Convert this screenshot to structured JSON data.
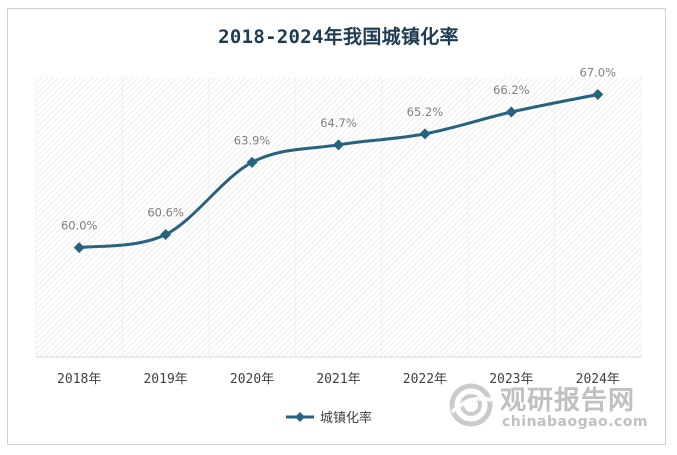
{
  "title": "2018-2024年我国城镇化率",
  "chart_data": {
    "type": "line",
    "title": "2018-2024年我国城镇化率",
    "categories": [
      "2018年",
      "2019年",
      "2020年",
      "2021年",
      "2022年",
      "2023年",
      "2024年"
    ],
    "series": [
      {
        "name": "城镇化率",
        "values": [
          60.0,
          60.6,
          63.9,
          64.7,
          65.2,
          66.2,
          67.0
        ],
        "labels": [
          "60.0%",
          "60.6%",
          "63.9%",
          "64.7%",
          "65.2%",
          "66.2%",
          "67.0%"
        ],
        "color": "#25637f",
        "smooth": true,
        "marker": "diamond"
      }
    ],
    "xlabel": "",
    "ylabel": "",
    "ylim": [
      55.0,
      67.8
    ],
    "grid": false,
    "legend": "bottom",
    "plot_background": "diagonal-hatch"
  },
  "watermark": {
    "text": "观研报告网",
    "url": "chinabaogao.com"
  },
  "colors": {
    "line": "#25637f",
    "title": "#1d3c52",
    "label": "#7f7f7f",
    "tick": "#404040"
  }
}
